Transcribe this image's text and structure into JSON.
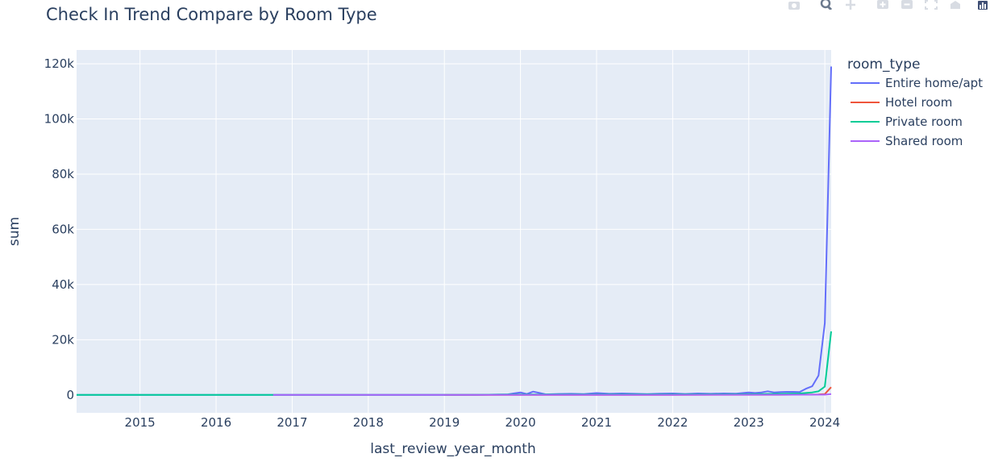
{
  "chart_data": {
    "type": "line",
    "title": "Check In Trend Compare by Room Type",
    "xlabel": "last_review_year_month",
    "ylabel": "sum",
    "x_ticks": [
      "2015",
      "2016",
      "2017",
      "2018",
      "2019",
      "2020",
      "2021",
      "2022",
      "2023",
      "2024"
    ],
    "y_ticks": [
      "0",
      "20k",
      "40k",
      "60k",
      "80k",
      "100k",
      "120k"
    ],
    "y_tick_values": [
      0,
      20000,
      40000,
      60000,
      80000,
      100000,
      120000
    ],
    "xlim": [
      "2014-03",
      "2024-02"
    ],
    "ylim": [
      -6500,
      125000
    ],
    "grid": true,
    "legend_title": "room_type",
    "legend_position": "right",
    "series": [
      {
        "name": "Entire home/apt",
        "color": "#636efa",
        "x": [
          "2014-03",
          "2016-01",
          "2019-06",
          "2019-09",
          "2019-11",
          "2020-01",
          "2020-02",
          "2020-03",
          "2020-04",
          "2020-05",
          "2020-07",
          "2020-09",
          "2020-11",
          "2021-01",
          "2021-03",
          "2021-05",
          "2021-07",
          "2021-09",
          "2021-11",
          "2022-01",
          "2022-03",
          "2022-05",
          "2022-07",
          "2022-09",
          "2022-11",
          "2023-01",
          "2023-02",
          "2023-03",
          "2023-04",
          "2023-05",
          "2023-06",
          "2023-07",
          "2023-08",
          "2023-09",
          "2023-10",
          "2023-11",
          "2023-12",
          "2024-01",
          "2024-02"
        ],
        "values": [
          0,
          0,
          0,
          100,
          200,
          900,
          300,
          1200,
          700,
          200,
          350,
          400,
          300,
          650,
          400,
          500,
          400,
          300,
          450,
          500,
          350,
          500,
          400,
          500,
          450,
          900,
          700,
          900,
          1300,
          900,
          1000,
          1100,
          1100,
          1000,
          2200,
          3100,
          7000,
          26000,
          119000
        ]
      },
      {
        "name": "Hotel room",
        "color": "#ef553b",
        "x": [
          "2019-01",
          "2020-01",
          "2021-01",
          "2022-01",
          "2023-01",
          "2023-06",
          "2023-10",
          "2023-12",
          "2024-01",
          "2024-02"
        ],
        "values": [
          0,
          20,
          30,
          30,
          40,
          60,
          90,
          150,
          300,
          2800
        ]
      },
      {
        "name": "Private room",
        "color": "#00cc96",
        "x": [
          "2014-03",
          "2016-01",
          "2018-01",
          "2019-06",
          "2020-01",
          "2021-01",
          "2022-01",
          "2023-01",
          "2023-06",
          "2023-09",
          "2023-10",
          "2023-11",
          "2023-12",
          "2024-01",
          "2024-02"
        ],
        "values": [
          0,
          0,
          0,
          50,
          150,
          150,
          200,
          250,
          400,
          500,
          700,
          900,
          1300,
          3000,
          23000
        ]
      },
      {
        "name": "Shared room",
        "color": "#ab63fa",
        "x": [
          "2016-10",
          "2018-01",
          "2020-01",
          "2022-01",
          "2023-06",
          "2024-01",
          "2024-02"
        ],
        "values": [
          0,
          10,
          20,
          20,
          40,
          80,
          300
        ]
      }
    ]
  },
  "modebar": {
    "buttons": [
      "camera-icon",
      "zoom-icon",
      "pan-icon",
      "zoom-in-icon",
      "zoom-out-icon",
      "autoscale-icon",
      "reset-axes-icon",
      "plotly-logo-icon"
    ]
  }
}
